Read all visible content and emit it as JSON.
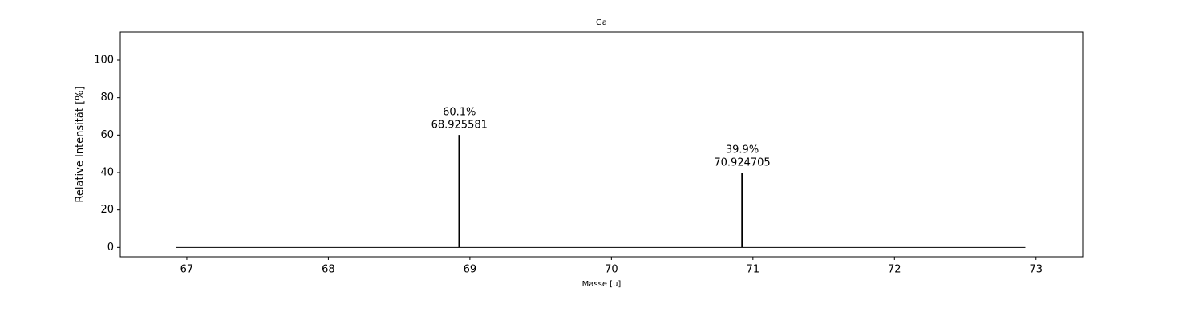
{
  "chart_data": {
    "type": "stem",
    "title": "Ga",
    "x_label": "Masse [u]",
    "y_label": "Relative Intensität [%]",
    "x": [
      68.925581,
      70.924705
    ],
    "values": [
      60.1,
      39.9
    ],
    "value_labels": [
      "60.1%",
      "39.9%"
    ],
    "color": "#000000",
    "baseline": {
      "x": [
        66.925581,
        72.924705
      ],
      "values": [
        0,
        0
      ]
    },
    "xlim": [
      66.53,
      73.33
    ],
    "xticks": [
      67,
      68,
      69,
      70,
      71,
      72,
      73
    ],
    "ylim": [
      -5,
      115
    ],
    "yticks": [
      0,
      20,
      40,
      60,
      80,
      100
    ],
    "grid": false
  }
}
